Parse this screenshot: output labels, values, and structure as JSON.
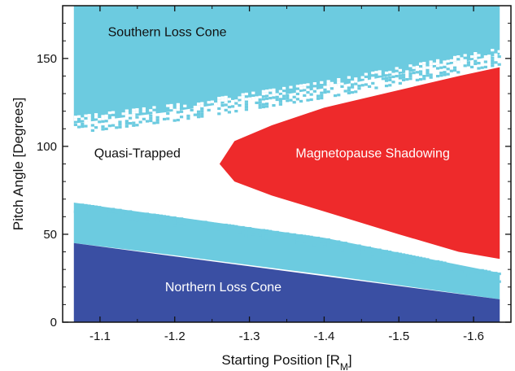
{
  "chart_data": {
    "type": "heatmap",
    "title": "",
    "xlabel": "Starting Position [R",
    "xlabel_subscript": "M",
    "xlabel_suffix": "]",
    "ylabel": "Pitch Angle [Degrees]",
    "xlim": [
      -1.05,
      -1.65
    ],
    "ylim": [
      0,
      180
    ],
    "x_reversed": true,
    "x_ticks": [
      "-1.1",
      "-1.2",
      "-1.3",
      "-1.4",
      "-1.5",
      "-1.6"
    ],
    "x_tick_values": [
      -1.1,
      -1.2,
      -1.3,
      -1.4,
      -1.5,
      -1.6
    ],
    "y_ticks": [
      "0",
      "50",
      "100",
      "150"
    ],
    "y_tick_values": [
      0,
      50,
      100,
      150
    ],
    "x_data_range": [
      -1.065,
      -1.635
    ],
    "colors": {
      "northern_loss_cone": "#3a4fa3",
      "southern_loss_cone": "#6ccbe0",
      "magnetopause_shadowing": "#ee2a2b",
      "quasi_trapped": "#ffffff"
    },
    "regions": [
      {
        "name": "Northern Loss Cone",
        "color_key": "northern_loss_cone",
        "label_color": "#ffffff",
        "label_at": [
          -1.265,
          20
        ],
        "boundary_upper": {
          "x": [
            -1.065,
            -1.635
          ],
          "y": [
            45,
            13
          ]
        }
      },
      {
        "name": "Southern Loss Cone",
        "color_key": "southern_loss_cone",
        "label_color": "#111111",
        "label_at": [
          -1.19,
          165
        ],
        "boundary_lower": {
          "x": [
            -1.065,
            -1.2,
            -1.4,
            -1.635
          ],
          "y": [
            113,
            120,
            133,
            152
          ]
        }
      },
      {
        "name": "Quasi-Trapped",
        "color_key": "quasi_trapped",
        "label_color": "#111111",
        "label_at": [
          -1.15,
          96
        ]
      },
      {
        "name": "Magnetopause Shadowing",
        "color_key": "magnetopause_shadowing",
        "label_color": "#ffffff",
        "label_at": [
          -1.465,
          96
        ],
        "outline": {
          "x": [
            -1.26,
            -1.28,
            -1.33,
            -1.4,
            -1.5,
            -1.58,
            -1.635,
            -1.635,
            -1.58,
            -1.5,
            -1.4,
            -1.33,
            -1.28
          ],
          "y": [
            90,
            103,
            112,
            122,
            132,
            140,
            145,
            36,
            40,
            50,
            63,
            72,
            80
          ]
        }
      }
    ],
    "light_band_below_quasi_trapped": {
      "x": [
        -1.065,
        -1.2,
        -1.4,
        -1.635
      ],
      "y_top": [
        68,
        60,
        48,
        28
      ],
      "y_bottom": [
        45,
        38,
        27,
        13
      ]
    }
  }
}
